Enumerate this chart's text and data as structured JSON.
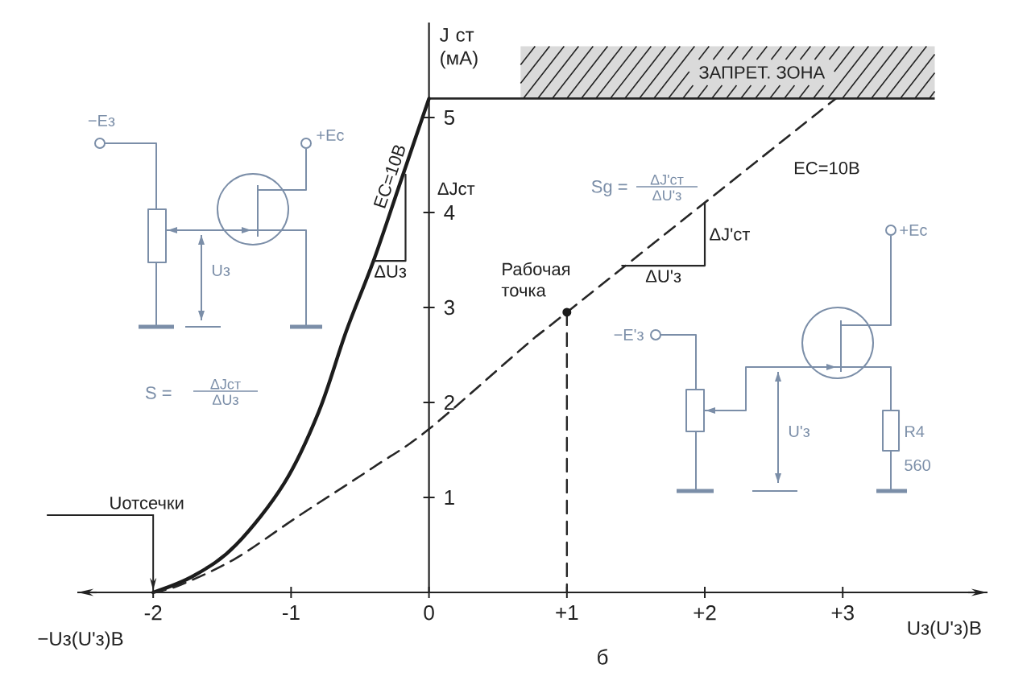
{
  "chart_data": {
    "type": "line",
    "xlabel": "Uз(U'з)В",
    "ylabel": "J ст (мА)",
    "xlim": [
      -2.55,
      4.05
    ],
    "ylim": [
      0,
      6.0
    ],
    "xticks": [
      -2,
      -1,
      0,
      {
        "value": 1,
        "label": "+1"
      },
      {
        "value": 2,
        "label": "+2"
      },
      {
        "value": 3,
        "label": "+3"
      }
    ],
    "yticks": [
      1,
      2,
      3,
      4,
      5
    ],
    "series": [
      {
        "color": "#1c1c1c",
        "line_style": "solid",
        "x": [
          -2.0,
          -1.7,
          -1.4,
          -1.05,
          -0.8,
          -0.6,
          -0.4,
          -0.2,
          0
        ],
        "values": [
          0,
          0.18,
          0.5,
          1.15,
          1.9,
          2.75,
          3.5,
          4.35,
          5.2
        ]
      },
      {
        "color": "#262626",
        "line_style": "dashed",
        "x": [
          -2.0,
          -1.8,
          -1.4,
          -0.95,
          -0.4,
          0,
          0.7,
          1.0,
          2.95
        ],
        "values": [
          0,
          0.08,
          0.36,
          0.8,
          1.32,
          1.72,
          2.6,
          2.95,
          5.2
        ]
      },
      {
        "color": "#262626",
        "line_style": "dashed",
        "x": [
          1,
          1
        ],
        "values": [
          2.95,
          0
        ]
      },
      {
        "color": "#262626",
        "line_style": "solid",
        "x": [
          -0.4,
          -0.17,
          -0.17
        ],
        "values": [
          3.49,
          3.49,
          4.4
        ]
      },
      {
        "color": "#262626",
        "line_style": "solid",
        "x": [
          1.4,
          2.0,
          2.0
        ],
        "values": [
          3.44,
          3.44,
          4.1
        ]
      },
      {
        "type": "scatter",
        "color": "#1c1c1c",
        "marker": "circle",
        "x": [
          1
        ],
        "values": [
          2.95
        ]
      }
    ],
    "ref_lines": [
      {
        "axis": "y",
        "value": 5.2,
        "color": "#262626"
      }
    ],
    "bands": [
      {
        "axis": "y",
        "from": 5.2,
        "to": 5.75,
        "label": "ЗАПРЕТ. ЗОНА",
        "color": "#dadada"
      }
    ],
    "annotations": [
      {
        "text": "Uотсечки",
        "x": -2,
        "y": 0
      },
      {
        "text": "Рабочая точка",
        "x": 1,
        "y": 2.95
      },
      {
        "text": "EC=10В",
        "x": -0.2,
        "y": 4.35
      },
      {
        "text": "EC=10В",
        "x": 2.6,
        "y": 4.8
      },
      {
        "text": "ΔJст",
        "x": -0.17,
        "y": 4.25
      },
      {
        "text": "ΔUз",
        "x": -0.28,
        "y": 3.49
      },
      {
        "text": "ΔJ'ст",
        "x": 2.0,
        "y": 3.77
      },
      {
        "text": "ΔU'з",
        "x": 1.7,
        "y": 3.44
      },
      "S =",
      "ΔJст",
      "ΔUз",
      "Sg =",
      "ΔJ'ст",
      "ΔU'з",
      "−Eз",
      "+Ec",
      "Uз",
      "−E'з",
      "+Ec",
      "U'з",
      "R4",
      "560",
      "−Uз(U'з)В",
      "б"
    ]
  }
}
